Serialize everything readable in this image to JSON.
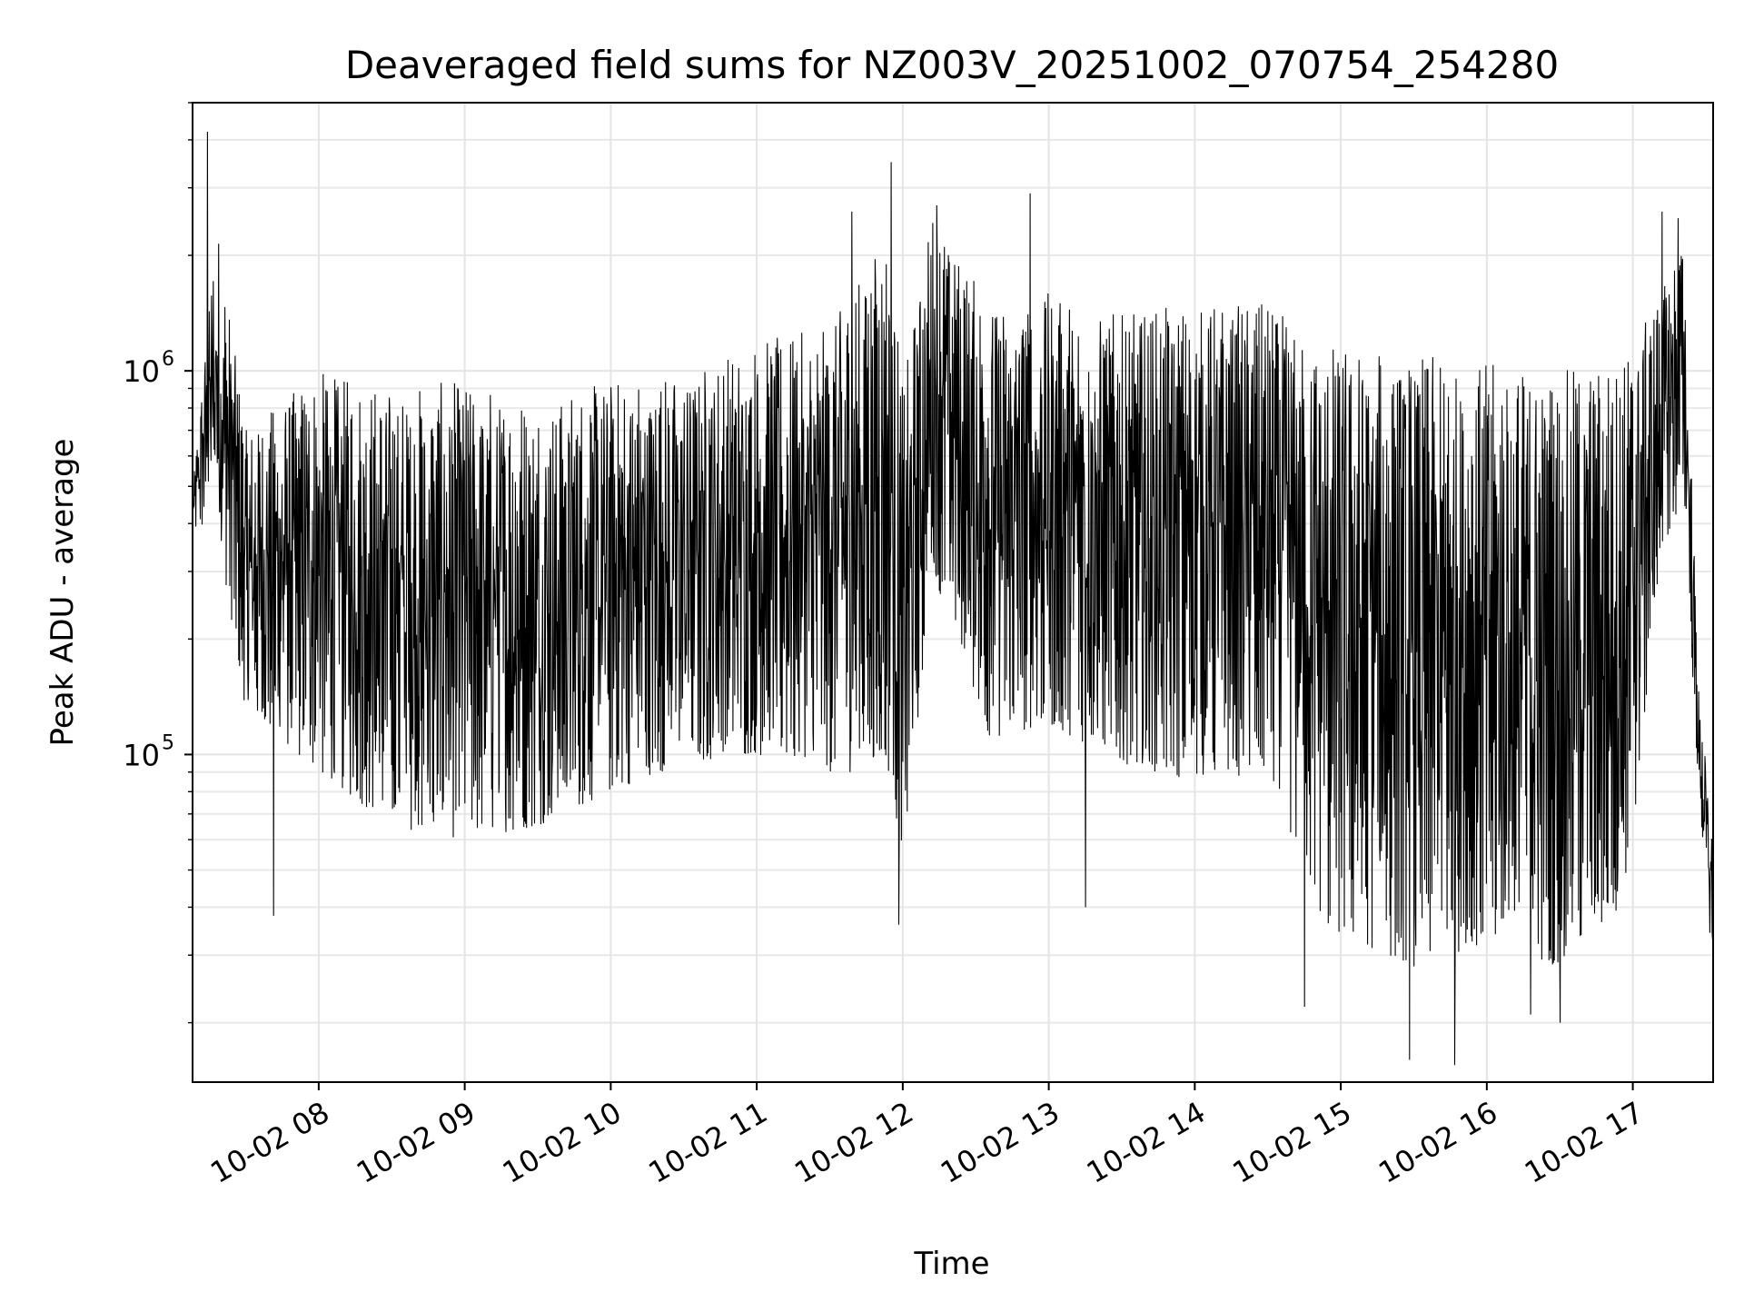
{
  "chart_data": {
    "type": "line",
    "title": "Deaveraged field sums for NZ003V_20251002_070754_254280",
    "xlabel": "Time",
    "ylabel": "Peak ADU - average",
    "yscale": "log",
    "ylim": [
      14000,
      5000000
    ],
    "xlim_hours": [
      7.136,
      17.55
    ],
    "grid": true,
    "legend": "none",
    "line_color": "#000000",
    "x_ticks": [
      {
        "hour": 8,
        "label": "10-02 08"
      },
      {
        "hour": 9,
        "label": "10-02 09"
      },
      {
        "hour": 10,
        "label": "10-02 10"
      },
      {
        "hour": 11,
        "label": "10-02 11"
      },
      {
        "hour": 12,
        "label": "10-02 12"
      },
      {
        "hour": 13,
        "label": "10-02 13"
      },
      {
        "hour": 14,
        "label": "10-02 14"
      },
      {
        "hour": 15,
        "label": "10-02 15"
      },
      {
        "hour": 16,
        "label": "10-02 16"
      },
      {
        "hour": 17,
        "label": "10-02 17"
      }
    ],
    "y_ticks": [
      {
        "value": 100000,
        "base": "10",
        "exp": "5"
      },
      {
        "value": 1000000,
        "base": "10",
        "exp": "6"
      }
    ],
    "envelope": {
      "hours": [
        7.14,
        7.3,
        7.5,
        8.0,
        8.5,
        9.0,
        9.5,
        10.0,
        10.5,
        11.0,
        11.5,
        11.9,
        12.0,
        12.2,
        12.6,
        13.0,
        13.5,
        14.0,
        14.5,
        14.9,
        15.5,
        16.0,
        16.5,
        16.95,
        17.2,
        17.35,
        17.45,
        17.55
      ],
      "low": [
        380000,
        400000,
        130000,
        90000,
        65000,
        60000,
        65000,
        80000,
        95000,
        100000,
        90000,
        90000,
        45000,
        300000,
        110000,
        120000,
        95000,
        85000,
        90000,
        35000,
        28000,
        32000,
        28000,
        40000,
        350000,
        450000,
        80000,
        25000
      ],
      "high": [
        500000,
        2500000,
        700000,
        1000000,
        900000,
        950000,
        850000,
        950000,
        1000000,
        1200000,
        1300000,
        2500000,
        900000,
        2600000,
        1500000,
        1600000,
        1400000,
        1500000,
        1500000,
        1200000,
        1100000,
        1050000,
        1000000,
        1100000,
        1600000,
        2300000,
        150000,
        60000
      ]
    },
    "spikes": [
      {
        "hour": 7.235,
        "value": 4200000
      },
      {
        "hour": 7.69,
        "value": 38000
      },
      {
        "hour": 9.62,
        "value": 115000
      },
      {
        "hour": 11.65,
        "value": 2600000
      },
      {
        "hour": 11.92,
        "value": 3500000
      },
      {
        "hour": 11.97,
        "value": 36000
      },
      {
        "hour": 12.23,
        "value": 2700000
      },
      {
        "hour": 12.87,
        "value": 2900000
      },
      {
        "hour": 13.25,
        "value": 40000
      },
      {
        "hour": 14.75,
        "value": 22000
      },
      {
        "hour": 15.47,
        "value": 16000
      },
      {
        "hour": 15.78,
        "value": 15500
      },
      {
        "hour": 16.3,
        "value": 21000
      },
      {
        "hour": 16.5,
        "value": 20000
      },
      {
        "hour": 17.2,
        "value": 2600000
      },
      {
        "hour": 17.31,
        "value": 2500000
      }
    ]
  }
}
